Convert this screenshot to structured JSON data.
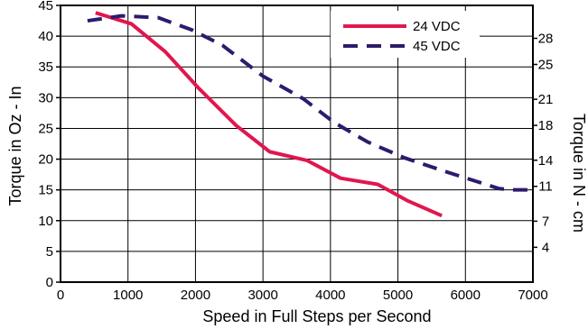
{
  "chart_data": {
    "type": "line",
    "xlabel": "Speed in Full Steps per Second",
    "ylabel": "Torque in Oz - In",
    "y2label": "Torque in N - cm",
    "xlim": [
      0,
      7000
    ],
    "ylim": [
      0,
      45
    ],
    "x_ticks": [
      "0",
      "1000",
      "2000",
      "3000",
      "4000",
      "5000",
      "6000",
      "7000"
    ],
    "y_ticks": [
      "0",
      "5",
      "10",
      "15",
      "20",
      "25",
      "30",
      "35",
      "40",
      "45"
    ],
    "y2_ticks": [
      {
        "label": "4",
        "value": 4
      },
      {
        "label": "7",
        "value": 7
      },
      {
        "label": "11",
        "value": 11
      },
      {
        "label": "14",
        "value": 14
      },
      {
        "label": "18",
        "value": 18
      },
      {
        "label": "21",
        "value": 21
      },
      {
        "label": "25",
        "value": 25
      },
      {
        "label": "28",
        "value": 28
      }
    ],
    "y2_per_y": 0.7062,
    "grid": true,
    "legend_position": "top-right",
    "series": [
      {
        "name": "24 VDC",
        "color": "#e0174f",
        "style": "solid",
        "x": [
          520,
          1050,
          1550,
          2050,
          2600,
          3100,
          3650,
          4150,
          4700,
          5150,
          5650
        ],
        "y": [
          43.8,
          42.0,
          37.5,
          31.5,
          25.5,
          21.2,
          19.8,
          16.9,
          15.9,
          13.2,
          10.8
        ]
      },
      {
        "name": "45 VDC",
        "color": "#2e1a6e",
        "style": "dashed",
        "x": [
          400,
          900,
          1450,
          1950,
          2400,
          3000,
          3600,
          4050,
          4550,
          5100,
          5700,
          6100,
          6500,
          6700,
          7000
        ],
        "y": [
          42.5,
          43.3,
          43.0,
          41.0,
          38.5,
          33.5,
          29.8,
          26.0,
          22.8,
          20.2,
          18.0,
          16.6,
          15.2,
          15.0,
          15.0
        ]
      }
    ]
  }
}
